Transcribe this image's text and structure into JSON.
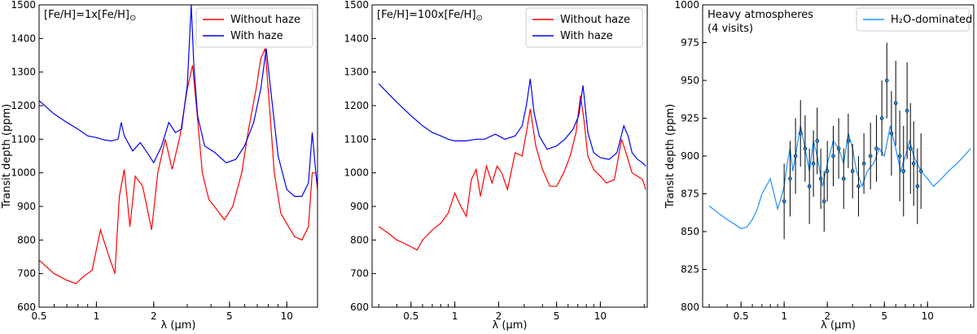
{
  "chart_data": [
    {
      "type": "line",
      "annotation": [
        "[Fe/H]=1x[Fe/H]",
        "⊙"
      ],
      "xlabel": "λ (μm)",
      "ylabel": "Transit depth (ppm)",
      "xscale": "log",
      "xlim": [
        0.5,
        14.5
      ],
      "ylim": [
        600,
        1500
      ],
      "yticks": [
        600,
        700,
        800,
        900,
        1000,
        1100,
        1200,
        1300,
        1400,
        1500
      ],
      "xticks": [
        {
          "v": 0.5,
          "label": "0.5"
        },
        {
          "v": 1,
          "label": "1"
        },
        {
          "v": 2,
          "label": "2"
        },
        {
          "v": 5,
          "label": "5"
        },
        {
          "v": 10,
          "label": "10"
        }
      ],
      "legend": "top-right",
      "series": [
        {
          "name": "Without haze",
          "color": "#ff0000",
          "x": [
            0.5,
            0.6,
            0.7,
            0.78,
            0.85,
            0.95,
            1.05,
            1.15,
            1.25,
            1.32,
            1.4,
            1.5,
            1.6,
            1.75,
            1.95,
            2.1,
            2.3,
            2.5,
            2.75,
            3.0,
            3.2,
            3.4,
            3.6,
            3.9,
            4.3,
            4.7,
            5.2,
            5.8,
            6.3,
            6.9,
            7.3,
            7.7,
            8.1,
            8.6,
            9.3,
            10.2,
            11.0,
            12.0,
            13.0,
            13.6,
            14.2,
            14.5
          ],
          "y": [
            740,
            700,
            680,
            670,
            690,
            710,
            830,
            760,
            700,
            930,
            1010,
            840,
            990,
            960,
            830,
            1000,
            1100,
            1010,
            1110,
            1250,
            1320,
            1160,
            1000,
            920,
            890,
            860,
            900,
            1000,
            1130,
            1250,
            1340,
            1370,
            1200,
            1000,
            880,
            840,
            810,
            800,
            840,
            1000,
            1000,
            950
          ]
        },
        {
          "name": "With haze",
          "color": "#0000ff",
          "x": [
            0.5,
            0.6,
            0.7,
            0.8,
            0.9,
            1.0,
            1.1,
            1.2,
            1.3,
            1.35,
            1.4,
            1.55,
            1.7,
            1.85,
            2.0,
            2.2,
            2.4,
            2.6,
            2.8,
            3.0,
            3.15,
            3.25,
            3.4,
            3.7,
            4.2,
            4.8,
            5.4,
            6.0,
            6.7,
            7.3,
            7.8,
            8.3,
            9.0,
            10.0,
            11.0,
            12.0,
            13.0,
            13.6,
            14.2,
            14.5
          ],
          "y": [
            1215,
            1175,
            1150,
            1130,
            1110,
            1105,
            1098,
            1095,
            1100,
            1150,
            1110,
            1065,
            1090,
            1060,
            1030,
            1080,
            1150,
            1120,
            1130,
            1260,
            1500,
            1320,
            1170,
            1080,
            1060,
            1030,
            1040,
            1080,
            1150,
            1250,
            1370,
            1230,
            1050,
            950,
            930,
            930,
            970,
            1120,
            1000,
            960
          ]
        }
      ]
    },
    {
      "type": "line",
      "annotation": [
        "[Fe/H]=100x[Fe/H]",
        "⊙"
      ],
      "xlabel": "λ (μm)",
      "ylabel": "",
      "xscale": "log",
      "xlim": [
        0.27,
        21
      ],
      "ylim": [
        600,
        1500
      ],
      "yticks": [
        600,
        700,
        800,
        900,
        1000,
        1100,
        1200,
        1300,
        1400,
        1500
      ],
      "xticks": [
        {
          "v": 0.5,
          "label": "0.5"
        },
        {
          "v": 1,
          "label": "1"
        },
        {
          "v": 2,
          "label": "2"
        },
        {
          "v": 5,
          "label": "5"
        },
        {
          "v": 10,
          "label": "10"
        }
      ],
      "legend": "top-right",
      "series": [
        {
          "name": "Without haze",
          "color": "#ff0000",
          "x": [
            0.3,
            0.35,
            0.4,
            0.45,
            0.5,
            0.55,
            0.6,
            0.7,
            0.8,
            0.9,
            1.0,
            1.1,
            1.2,
            1.3,
            1.4,
            1.5,
            1.65,
            1.8,
            1.95,
            2.1,
            2.3,
            2.6,
            2.9,
            3.1,
            3.3,
            3.6,
            4.0,
            4.5,
            5.0,
            5.6,
            6.2,
            6.8,
            7.3,
            7.7,
            8.2,
            9.0,
            10.0,
            11.0,
            12.5,
            14.0,
            15.0,
            16.5,
            18.0,
            19.5,
            20.5
          ],
          "y": [
            840,
            820,
            800,
            790,
            780,
            770,
            800,
            830,
            850,
            880,
            940,
            900,
            870,
            980,
            1010,
            930,
            1020,
            970,
            1020,
            1000,
            950,
            1060,
            1050,
            1120,
            1190,
            1080,
            1010,
            960,
            960,
            1000,
            1050,
            1120,
            1230,
            1160,
            1050,
            1010,
            990,
            970,
            980,
            1100,
            1060,
            1000,
            990,
            980,
            950
          ]
        },
        {
          "name": "With haze",
          "color": "#0000ff",
          "x": [
            0.3,
            0.4,
            0.5,
            0.6,
            0.7,
            0.8,
            0.9,
            1.0,
            1.2,
            1.4,
            1.6,
            1.9,
            2.2,
            2.6,
            2.9,
            3.1,
            3.3,
            3.5,
            3.8,
            4.3,
            5.0,
            5.7,
            6.5,
            7.1,
            7.6,
            8.2,
            9.0,
            10.0,
            11.5,
            13.0,
            14.5,
            15.5,
            16.5,
            18.0,
            19.5,
            20.5
          ],
          "y": [
            1265,
            1210,
            1170,
            1140,
            1120,
            1110,
            1100,
            1095,
            1095,
            1100,
            1100,
            1115,
            1100,
            1110,
            1140,
            1200,
            1280,
            1180,
            1110,
            1070,
            1080,
            1100,
            1130,
            1170,
            1260,
            1120,
            1060,
            1045,
            1040,
            1060,
            1140,
            1110,
            1060,
            1040,
            1030,
            1020
          ]
        }
      ]
    },
    {
      "type": "line",
      "annotation": [
        "Heavy atmospheres",
        "(4 visits)"
      ],
      "xlabel": "λ (μm)",
      "ylabel": "Transit depth (ppm)",
      "xscale": "log",
      "xlim": [
        0.27,
        21
      ],
      "ylim": [
        800,
        1000
      ],
      "yticks": [
        800,
        825,
        850,
        875,
        900,
        925,
        950,
        975,
        1000
      ],
      "xticks": [
        {
          "v": 0.5,
          "label": "0.5"
        },
        {
          "v": 1,
          "label": "1"
        },
        {
          "v": 2,
          "label": "2"
        },
        {
          "v": 5,
          "label": "5"
        },
        {
          "v": 10,
          "label": "10"
        }
      ],
      "legend": "top-right",
      "series": [
        {
          "name": "H₂O-dominated",
          "color": "#1e90ff",
          "x": [
            0.3,
            0.35,
            0.4,
            0.45,
            0.5,
            0.55,
            0.6,
            0.65,
            0.7,
            0.75,
            0.8,
            0.85,
            0.9,
            0.95,
            1.0,
            1.05,
            1.1,
            1.15,
            1.2,
            1.3,
            1.4,
            1.5,
            1.6,
            1.7,
            1.85,
            2.0,
            2.2,
            2.4,
            2.6,
            2.8,
            3.0,
            3.2,
            3.5,
            3.8,
            4.2,
            4.6,
            5.0,
            5.5,
            6.0,
            6.5,
            7.0,
            7.5,
            8.0,
            9.0,
            10.0,
            11.0,
            12.5,
            14.0,
            16.0,
            18.0,
            20.0
          ],
          "y": [
            867,
            862,
            858,
            855,
            852,
            853,
            858,
            865,
            875,
            880,
            885,
            875,
            865,
            872,
            880,
            895,
            905,
            890,
            900,
            920,
            905,
            890,
            910,
            900,
            880,
            895,
            910,
            905,
            895,
            915,
            905,
            890,
            880,
            890,
            895,
            905,
            900,
            920,
            905,
            890,
            900,
            910,
            900,
            890,
            885,
            880,
            885,
            890,
            895,
            900,
            905
          ]
        }
      ],
      "points": {
        "x": [
          1.0,
          1.1,
          1.2,
          1.3,
          1.4,
          1.5,
          1.6,
          1.7,
          1.8,
          1.9,
          2.0,
          2.2,
          2.4,
          2.6,
          2.8,
          3.0,
          3.3,
          3.6,
          4.0,
          4.4,
          4.8,
          5.2,
          5.6,
          6.0,
          6.4,
          6.8,
          7.2,
          7.6,
          8.0,
          8.5,
          9.0
        ],
        "y": [
          870,
          885,
          900,
          915,
          905,
          880,
          895,
          910,
          885,
          870,
          890,
          900,
          905,
          885,
          910,
          890,
          880,
          895,
          900,
          905,
          925,
          950,
          915,
          935,
          900,
          890,
          930,
          905,
          895,
          880,
          890
        ],
        "err": [
          25,
          25,
          25,
          22,
          22,
          25,
          22,
          22,
          20,
          20,
          20,
          20,
          20,
          20,
          18,
          18,
          20,
          20,
          22,
          22,
          25,
          25,
          28,
          28,
          30,
          30,
          32,
          30,
          28,
          25,
          25
        ]
      }
    }
  ]
}
